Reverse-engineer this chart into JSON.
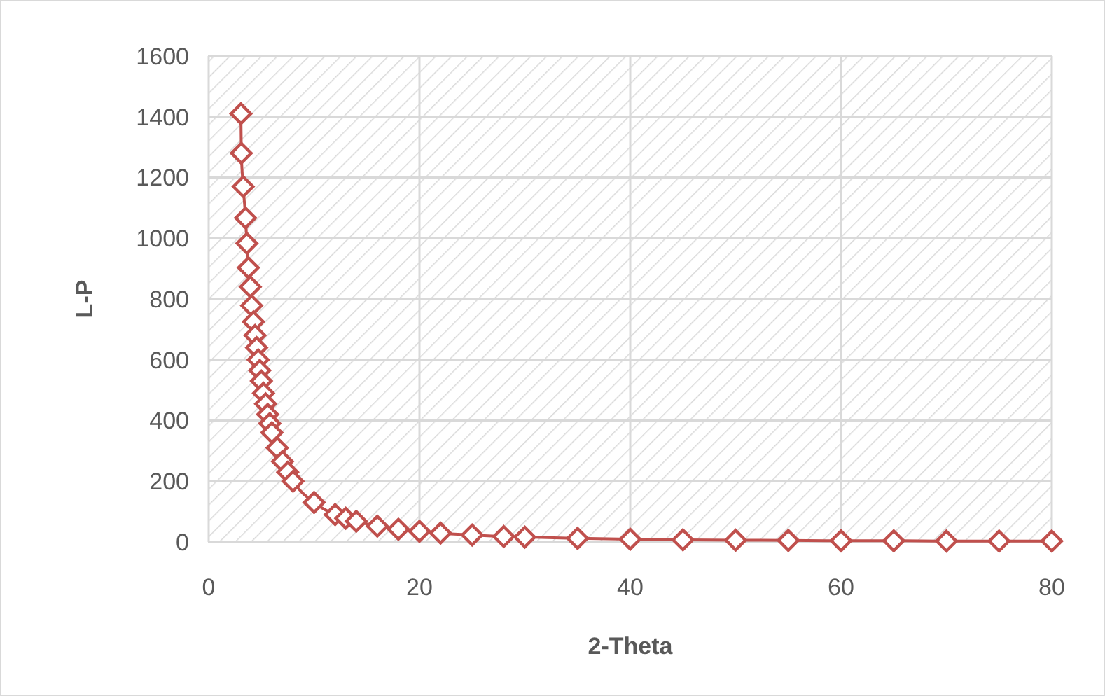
{
  "chart_data": {
    "type": "line",
    "xlabel": "2-Theta",
    "ylabel": "L-P",
    "xlim": [
      0,
      80
    ],
    "xticks": [
      0,
      20,
      40,
      60,
      80
    ],
    "ylim": [
      0,
      1600
    ],
    "yticks": [
      0,
      200,
      400,
      600,
      800,
      1000,
      1200,
      1400,
      1600
    ],
    "grid": true,
    "marker": "diamond",
    "line_style": "solid",
    "series": [
      {
        "color": "#c0504d",
        "x": [
          3.06,
          3.1,
          3.28,
          3.5,
          3.63,
          3.77,
          3.95,
          4.08,
          4.25,
          4.4,
          4.55,
          4.7,
          4.85,
          5.0,
          5.2,
          5.4,
          5.6,
          5.8,
          6.0,
          6.5,
          7,
          7.5,
          8,
          10,
          12,
          13,
          14,
          16,
          18,
          20,
          22,
          25,
          28,
          30,
          35,
          40,
          45,
          50,
          55,
          60,
          65,
          70,
          75,
          80
        ],
        "values": [
          1410,
          1280,
          1170,
          1067,
          983,
          903,
          840,
          778,
          725,
          680,
          640,
          600,
          565,
          530,
          490,
          455,
          420,
          390,
          360,
          310,
          265,
          230,
          200,
          130,
          90,
          78,
          68,
          52,
          42,
          35,
          29,
          23,
          18,
          16,
          12,
          9,
          7,
          6,
          5,
          4,
          4,
          3,
          3,
          3
        ]
      }
    ]
  }
}
